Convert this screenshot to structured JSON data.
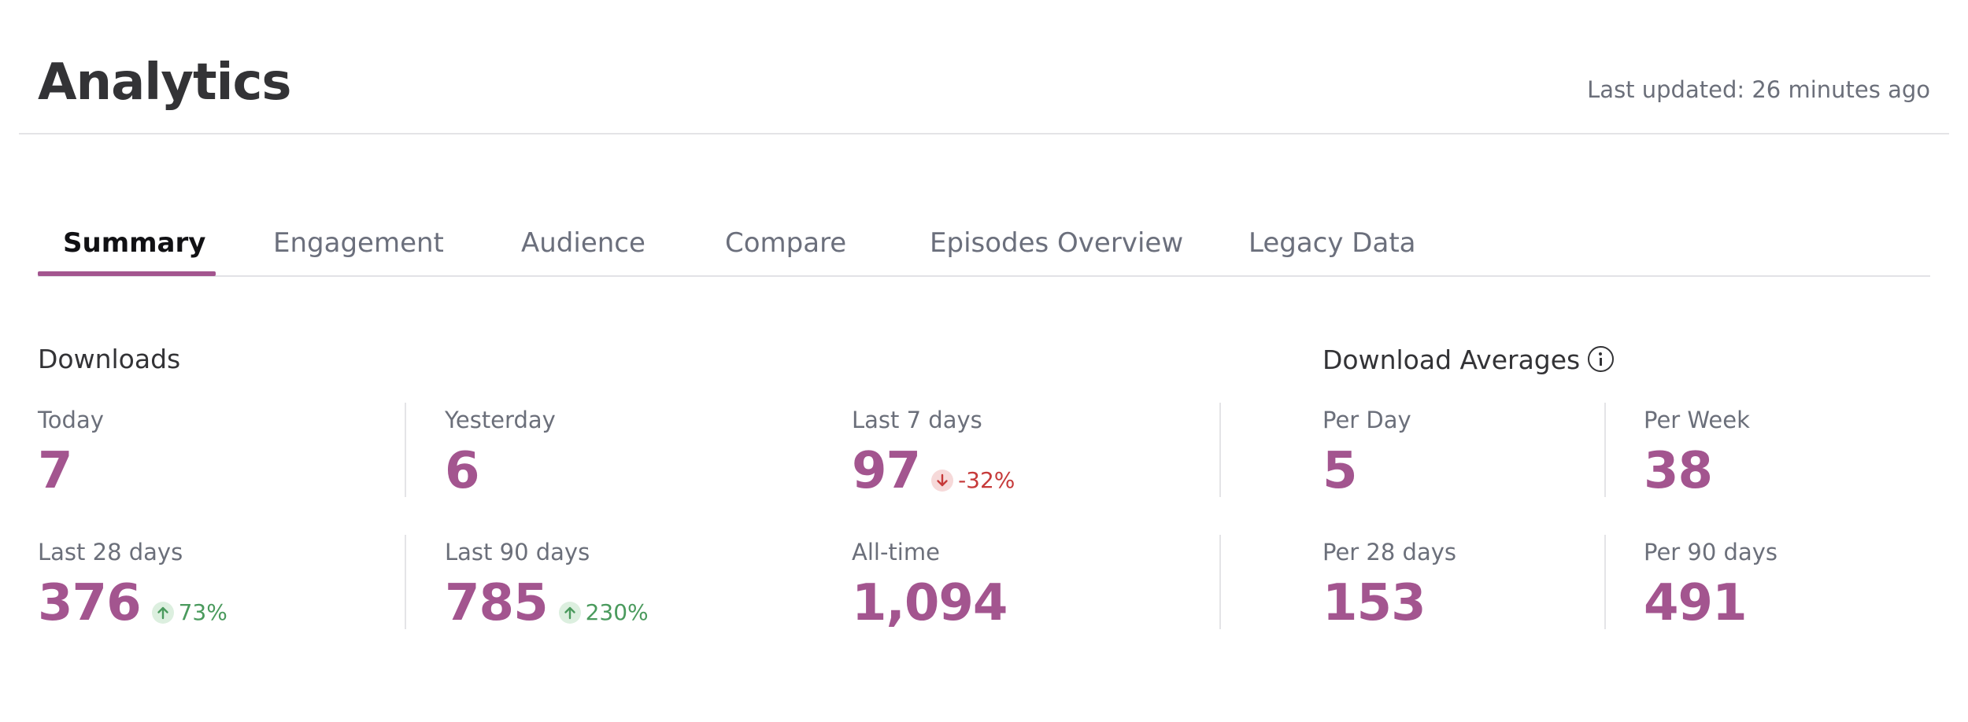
{
  "header": {
    "title": "Analytics",
    "last_updated": "Last updated: 26 minutes ago"
  },
  "tabs": [
    {
      "label": "Summary",
      "active": true
    },
    {
      "label": "Engagement",
      "active": false
    },
    {
      "label": "Audience",
      "active": false
    },
    {
      "label": "Compare",
      "active": false
    },
    {
      "label": "Episodes Overview",
      "active": false
    },
    {
      "label": "Legacy Data",
      "active": false
    }
  ],
  "downloads": {
    "title": "Downloads",
    "stats": [
      {
        "label": "Today",
        "value": "7"
      },
      {
        "label": "Yesterday",
        "value": "6"
      },
      {
        "label": "Last 7 days",
        "value": "97",
        "change": "-32%",
        "direction": "down"
      },
      {
        "label": "Last 28 days",
        "value": "376",
        "change": "73%",
        "direction": "up"
      },
      {
        "label": "Last 90 days",
        "value": "785",
        "change": "230%",
        "direction": "up"
      },
      {
        "label": "All-time",
        "value": "1,094"
      }
    ]
  },
  "averages": {
    "title": "Download Averages",
    "info_icon": "info-icon",
    "stats": [
      {
        "label": "Per Day",
        "value": "5"
      },
      {
        "label": "Per Week",
        "value": "38"
      },
      {
        "label": "Per 28 days",
        "value": "153"
      },
      {
        "label": "Per 90 days",
        "value": "491"
      }
    ]
  },
  "colors": {
    "accent": "#a3558f",
    "positive": "#4a9a5d",
    "negative": "#c63a3a"
  }
}
